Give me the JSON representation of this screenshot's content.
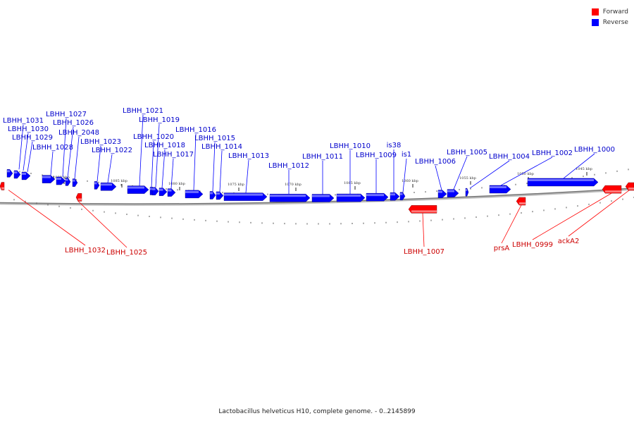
{
  "colors": {
    "forward": "#ff0000",
    "reverse": "#0000ff",
    "forward_label": "#cc0000",
    "reverse_label": "#0000cc",
    "backbone": "#777777"
  },
  "legend": [
    {
      "label": "Forward",
      "color": "#ff0000"
    },
    {
      "label": "Reverse",
      "color": "#0000ff"
    }
  ],
  "caption": "Lactobacillus helveticus H10, complete genome. - 0..2145899",
  "ticks": [
    "1090 kbp",
    "1085 kbp",
    "1080 kbp",
    "1075 kbp",
    "1070 kbp",
    "1065 kbp",
    "1060 kbp",
    "1055 kbp",
    "1050 kbp",
    "1045 kbp"
  ],
  "reverse_genes": [
    "LBHH_1031",
    "LBHH_1030",
    "LBHH_1029",
    "LBHH_1028",
    "LBHH_1027",
    "LBHH_1026",
    "LBHH_2048",
    "LBHH_1023",
    "LBHH_1022",
    "LBHH_1021",
    "LBHH_1020",
    "LBHH_1019",
    "LBHH_1018",
    "LBHH_1017",
    "LBHH_1016",
    "LBHH_1015",
    "LBHH_1014",
    "LBHH_1013",
    "LBHH_1012",
    "LBHH_1011",
    "LBHH_1010",
    "LBHH_1009",
    "is38",
    "is1",
    "LBHH_1006",
    "LBHH_1005",
    "LBHH_1004",
    "LBHH_1002",
    "LBHH_1000"
  ],
  "forward_genes": [
    "LBHH_1032",
    "LBHH_1025",
    "LBHH_1007",
    "prsA",
    "LBHH_0999",
    "ackA2"
  ]
}
